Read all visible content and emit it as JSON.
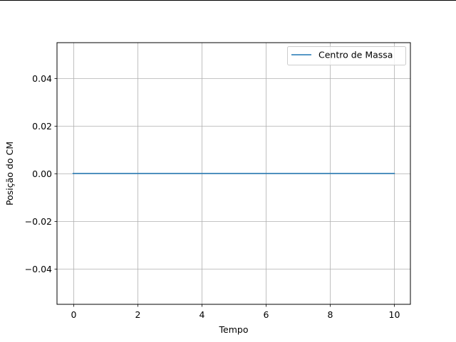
{
  "chart_data": {
    "type": "line",
    "title": "",
    "xlabel": "Tempo",
    "ylabel": "Posição do CM",
    "xlim": [
      -0.5,
      10.5
    ],
    "ylim": [
      -0.055,
      0.055
    ],
    "xticks": [
      0,
      2,
      4,
      6,
      8,
      10
    ],
    "xtick_labels": [
      "0",
      "2",
      "4",
      "6",
      "8",
      "10"
    ],
    "yticks": [
      -0.04,
      -0.02,
      0.0,
      0.02,
      0.04
    ],
    "ytick_labels": [
      "−0.04",
      "−0.02",
      "0.00",
      "0.02",
      "0.04"
    ],
    "grid": true,
    "legend_position": "top-right",
    "series": [
      {
        "name": "Centro de Massa",
        "color": "#1f77b4",
        "x": [
          0,
          1,
          2,
          3,
          4,
          5,
          6,
          7,
          8,
          9,
          10
        ],
        "y": [
          0,
          0,
          0,
          0,
          0,
          0,
          0,
          0,
          0,
          0,
          0
        ]
      }
    ]
  }
}
